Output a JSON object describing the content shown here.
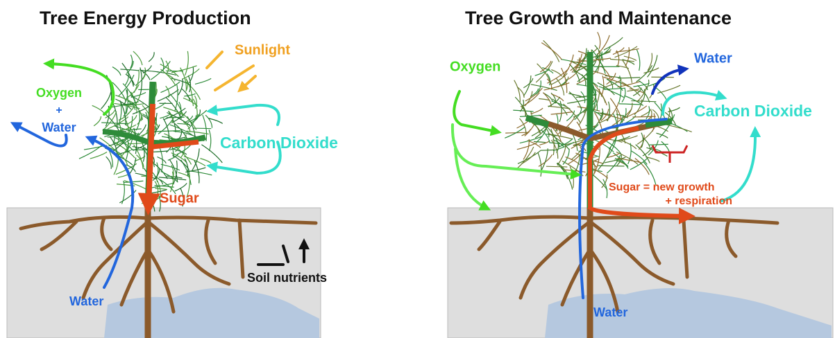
{
  "panels": [
    {
      "title": "Tree Energy Production",
      "labels": {
        "sunlight": "Sunlight",
        "oxygen": "Oxygen",
        "plus": "+",
        "water_top": "Water",
        "carbon_dioxide": "Carbon Dioxide",
        "sugar": "Sugar",
        "water_bottom": "Water",
        "soil_nutrients": "Soil nutrients"
      }
    },
    {
      "title": "Tree Growth and Maintenance",
      "labels": {
        "oxygen": "Oxygen",
        "water_top": "Water",
        "carbon_dioxide": "Carbon Dioxide",
        "sugar_line1": "Sugar = new growth",
        "sugar_line2": "+ respiration",
        "water_bottom": "Water"
      }
    }
  ]
}
